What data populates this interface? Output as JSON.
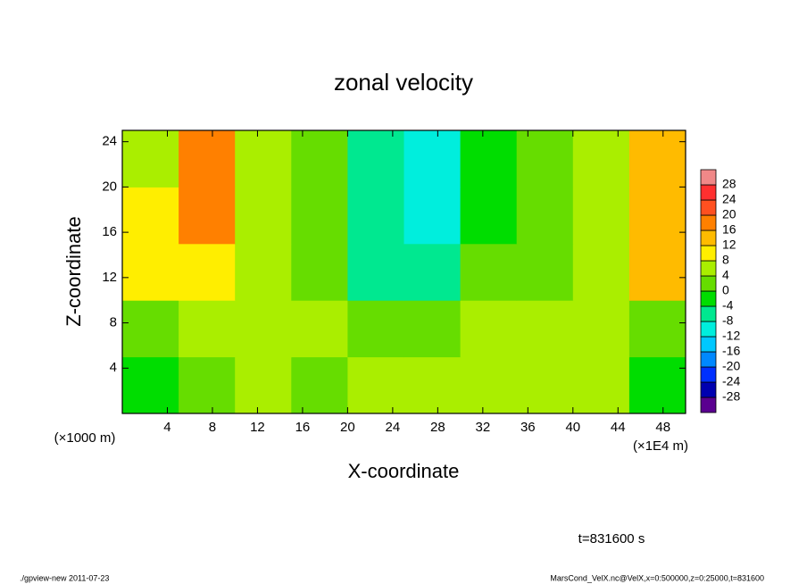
{
  "chart_data": {
    "type": "heatmap",
    "title": "zonal velocity",
    "x_label": "X-coordinate",
    "y_label": "Z-coordinate",
    "x_unit": "(×1E4 m)",
    "y_unit": "(×1000 m)",
    "x": [
      2.5,
      7.5,
      12.5,
      17.5,
      22.5,
      27.5,
      32.5,
      37.5,
      42.5,
      47.5
    ],
    "y": [
      2.5,
      7.5,
      12.5,
      17.5,
      22.5
    ],
    "values": [
      [
        -4,
        2,
        4,
        2,
        4,
        6,
        4,
        6,
        4,
        -2
      ],
      [
        2,
        4,
        4,
        4,
        2,
        2,
        4,
        4,
        4,
        2
      ],
      [
        8,
        10,
        4,
        2,
        -6,
        -8,
        0,
        2,
        6,
        12
      ],
      [
        8,
        16,
        4,
        2,
        -8,
        -10,
        -2,
        2,
        6,
        14
      ],
      [
        6,
        16,
        4,
        0,
        -8,
        -10,
        -4,
        2,
        6,
        14
      ]
    ],
    "xlim": [
      0,
      50
    ],
    "xticks": [
      4,
      8,
      12,
      16,
      20,
      24,
      28,
      32,
      36,
      40,
      44,
      48
    ],
    "ylim": [
      0,
      25
    ],
    "yticks": [
      4,
      8,
      12,
      16,
      20,
      24
    ],
    "colorbar": {
      "levels": [
        -28,
        -24,
        -20,
        -16,
        -12,
        -8,
        -4,
        0,
        4,
        8,
        12,
        16,
        20,
        24,
        28
      ],
      "colors": [
        "#5a0090",
        "#0000b0",
        "#0030ff",
        "#0088ff",
        "#00c8ff",
        "#00eedd",
        "#00e890",
        "#00dd00",
        "#66dd00",
        "#aaee00",
        "#ffee00",
        "#ffbb00",
        "#ff8000",
        "#ff5020",
        "#ff3030",
        "#f08888"
      ]
    },
    "annotation": "t=831600 s",
    "footer_left": "./gpview-new   2011-07-23",
    "footer_right": "MarsCond_VelX.nc@VelX,x=0:500000,z=0:25000,t=831600"
  }
}
